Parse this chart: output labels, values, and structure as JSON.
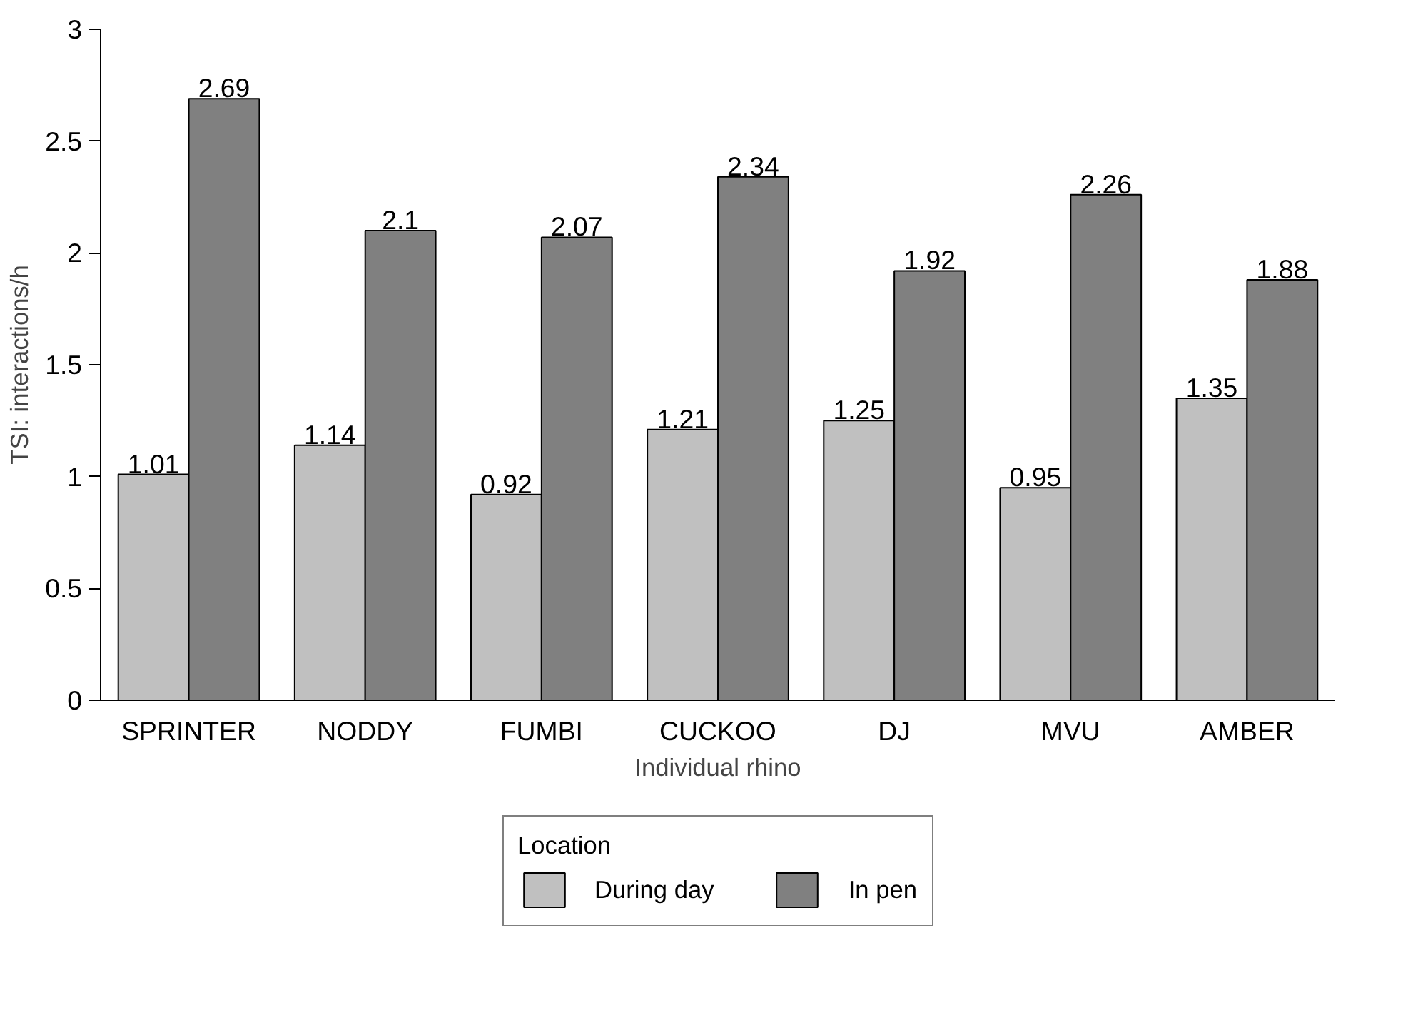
{
  "chart_data": {
    "type": "bar",
    "xlabel": "Individual rhino",
    "ylabel": "TSI: interactions/h",
    "legend_title": "Location",
    "categories": [
      "SPRINTER",
      "NODDY",
      "FUMBI",
      "CUCKOO",
      "DJ",
      "MVU",
      "AMBER"
    ],
    "series": [
      {
        "name": "During day",
        "color": "#c0c0c0",
        "values": [
          1.01,
          1.14,
          0.92,
          1.21,
          1.25,
          0.95,
          1.35
        ]
      },
      {
        "name": "In pen",
        "color": "#808080",
        "values": [
          2.69,
          2.1,
          2.07,
          2.34,
          1.92,
          2.26,
          1.88
        ]
      }
    ],
    "ylim": [
      0,
      3
    ],
    "yticks": [
      0,
      0.5,
      1,
      1.5,
      2,
      2.5,
      3
    ],
    "data_labels": true,
    "grid": false,
    "legend": "bottom"
  }
}
